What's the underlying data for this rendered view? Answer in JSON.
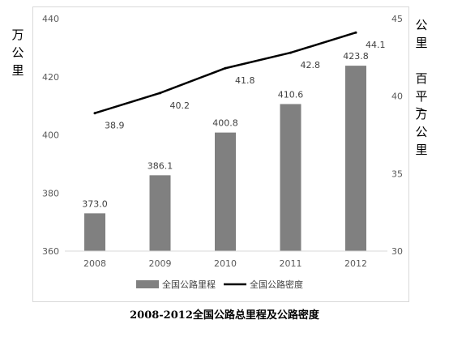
{
  "caption": "2008-2012全国公路总里程及公路密度",
  "chart_data": {
    "type": "bar",
    "categories": [
      "2008",
      "2009",
      "2010",
      "2011",
      "2012"
    ],
    "series": [
      {
        "name": "全国公路里程",
        "type": "bar",
        "axis": "left",
        "values": [
          373.0,
          386.1,
          400.8,
          410.6,
          423.8
        ],
        "labels": [
          "373.0",
          "386.1",
          "400.8",
          "410.6",
          "423.8"
        ],
        "color": "#808080"
      },
      {
        "name": "全国公路密度",
        "type": "line",
        "axis": "right",
        "values": [
          38.9,
          40.2,
          41.8,
          42.8,
          44.1
        ],
        "labels": [
          "38.9",
          "40.2",
          "41.8",
          "42.8",
          "44.1"
        ],
        "color": "#000000"
      }
    ],
    "y_left": {
      "label": "万公里",
      "min": 360,
      "max": 440,
      "ticks": [
        "360",
        "380",
        "400",
        "420",
        "440"
      ]
    },
    "y_right": {
      "label": "公里/百平方公里",
      "min": 30,
      "max": 45,
      "ticks": [
        "30",
        "35",
        "40",
        "45"
      ]
    },
    "grid": false,
    "legend": "bottom"
  }
}
